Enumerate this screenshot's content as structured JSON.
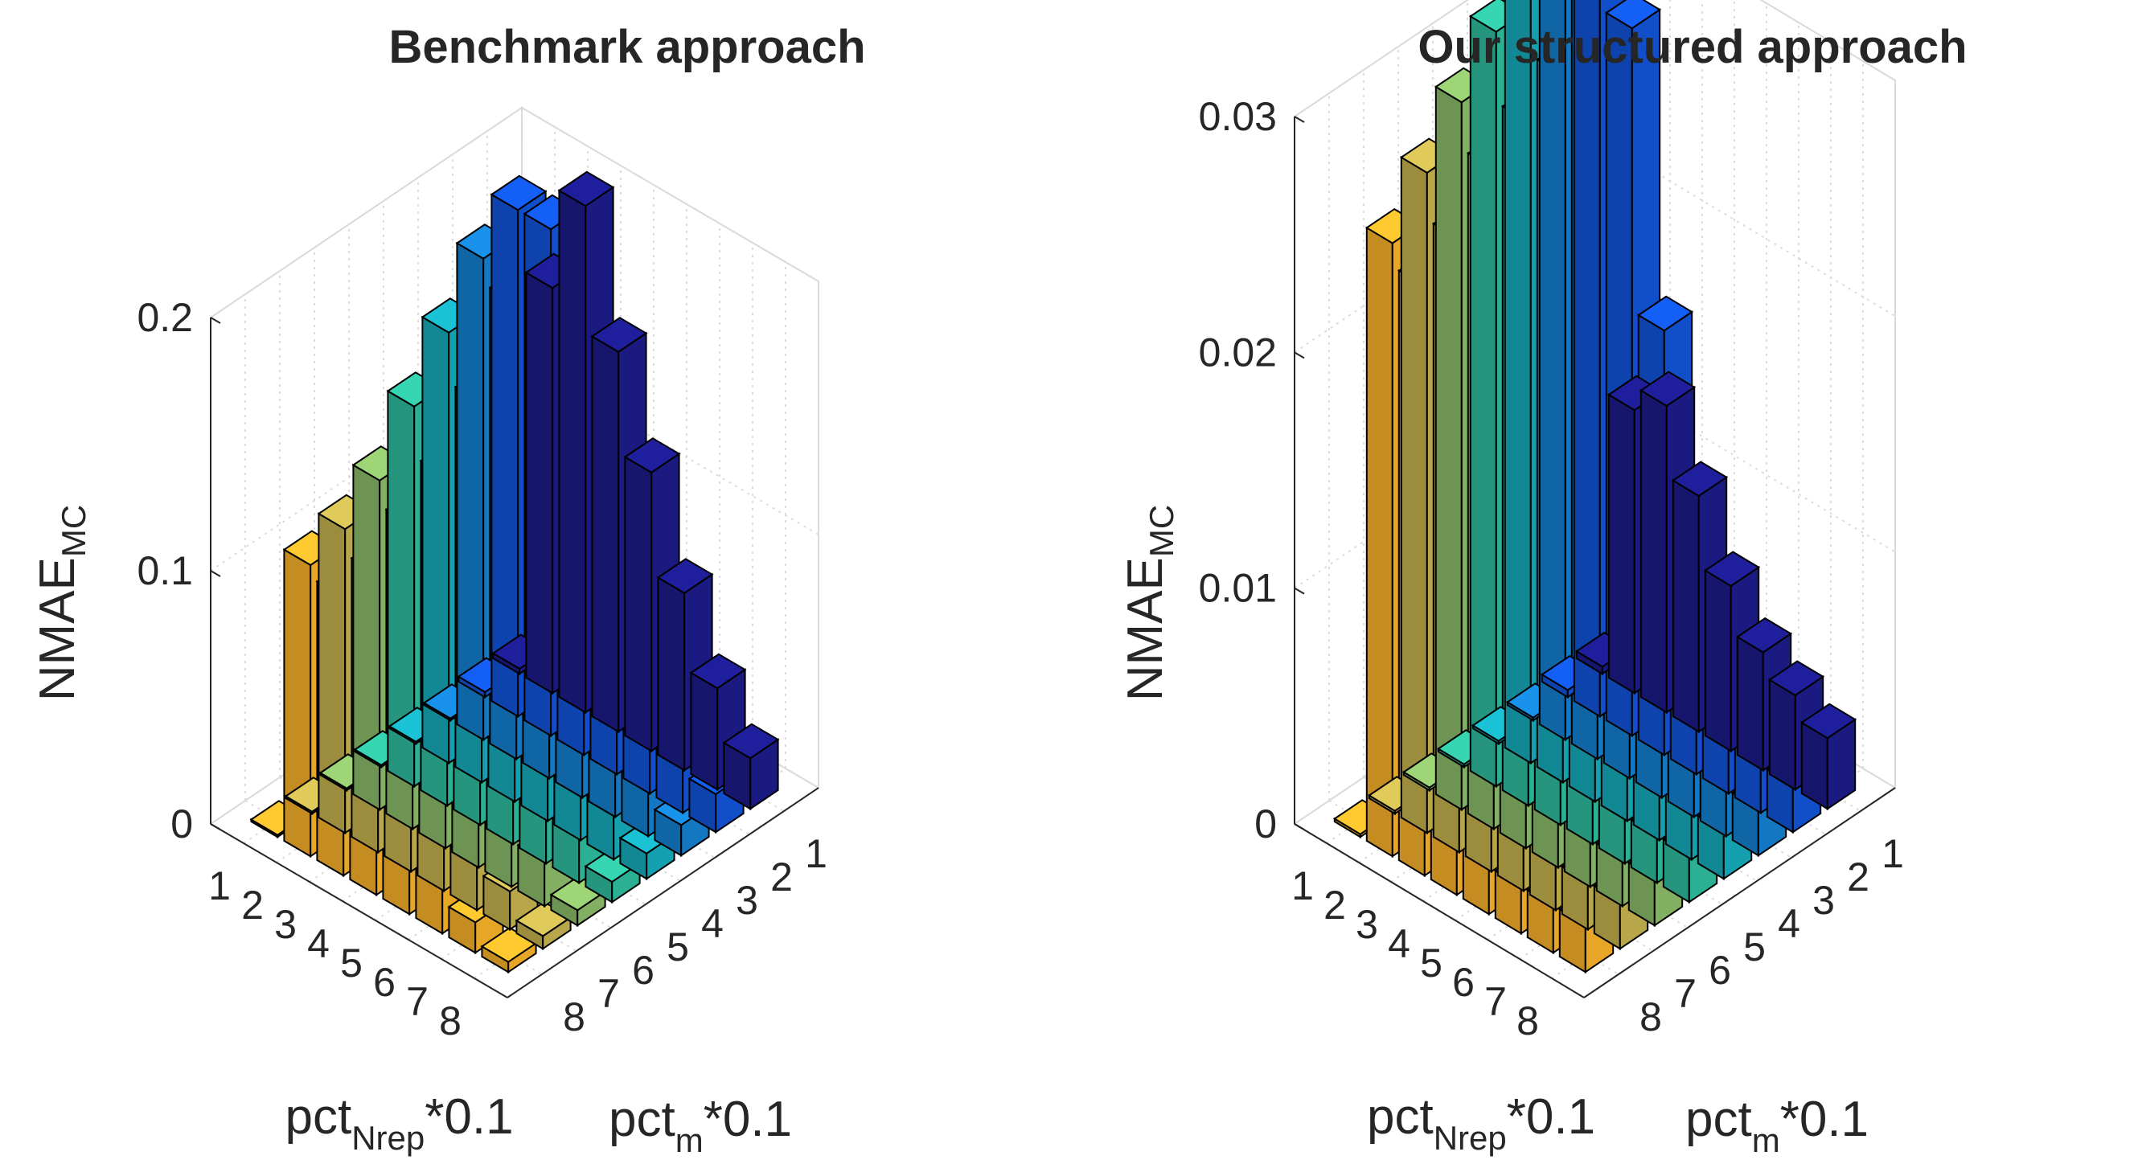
{
  "chart_data": [
    {
      "type": "bar3d",
      "title": "Benchmark approach",
      "zlabel": "NMAE",
      "zlabel_sub": "MC",
      "xlabel_main": "pct",
      "xlabel_sub": "Nrep",
      "xlabel_suffix": "*0.1",
      "ylabel_main": "pct",
      "ylabel_sub": "m",
      "ylabel_suffix": "*0.1",
      "x_ticks": [
        "1",
        "2",
        "3",
        "4",
        "5",
        "6",
        "7",
        "8"
      ],
      "y_ticks": [
        "1",
        "2",
        "3",
        "4",
        "5",
        "6",
        "7",
        "8"
      ],
      "zlim": [
        0,
        0.2
      ],
      "z_ticks": [
        "0",
        "0.1",
        "0.2"
      ],
      "z_tick_values": [
        0,
        0.1,
        0.2
      ],
      "series_colors": [
        "#1c1c8c",
        "#1255dc",
        "#1582d2",
        "#16aebe",
        "#30bfa0",
        "#8dbe6a",
        "#c8b450",
        "#fcb42a",
        "#fbf01e"
      ],
      "series": [
        {
          "name": "pct_Nrep 1",
          "values": [
            0.002,
            0.002,
            0.0,
            0.0,
            0.0,
            0.0,
            0.0,
            0.0
          ]
        },
        {
          "name": "pct_Nrep 2",
          "values": [
            0.16,
            0.2,
            0.19,
            0.17,
            0.15,
            0.13,
            0.12,
            0.115
          ]
        },
        {
          "name": "pct_Nrep 3",
          "values": [
            0.2,
            0.2,
            0.18,
            0.15,
            0.13,
            0.12,
            0.11,
            0.11
          ]
        },
        {
          "name": "pct_Nrep 4",
          "values": [
            0.15,
            0.13,
            0.12,
            0.11,
            0.1,
            0.09,
            0.08,
            0.075
          ]
        },
        {
          "name": "pct_Nrep 5",
          "values": [
            0.11,
            0.09,
            0.08,
            0.07,
            0.06,
            0.05,
            0.045,
            0.04
          ]
        },
        {
          "name": "pct_Nrep 6",
          "values": [
            0.07,
            0.055,
            0.05,
            0.045,
            0.04,
            0.035,
            0.03,
            0.025
          ]
        },
        {
          "name": "pct_Nrep 7",
          "values": [
            0.04,
            0.035,
            0.03,
            0.025,
            0.02,
            0.018,
            0.015,
            0.012
          ]
        },
        {
          "name": "pct_Nrep 8",
          "values": [
            0.02,
            0.015,
            0.012,
            0.01,
            0.008,
            0.006,
            0.005,
            0.004
          ]
        }
      ]
    },
    {
      "type": "bar3d",
      "title": "Our structured approach",
      "zlabel": "NMAE",
      "zlabel_sub": "MC",
      "xlabel_main": "pct",
      "xlabel_sub": "Nrep",
      "xlabel_suffix": "*0.1",
      "ylabel_main": "pct",
      "ylabel_sub": "m",
      "ylabel_suffix": "*0.1",
      "x_ticks": [
        "1",
        "2",
        "3",
        "4",
        "5",
        "6",
        "7",
        "8"
      ],
      "y_ticks": [
        "1",
        "2",
        "3",
        "4",
        "5",
        "6",
        "7",
        "8"
      ],
      "zlim": [
        0,
        0.03
      ],
      "z_ticks": [
        "0",
        "0.01",
        "0.02",
        "0.03"
      ],
      "z_tick_values": [
        0,
        0.01,
        0.02,
        0.03
      ],
      "series_colors": [
        "#1c1c8c",
        "#1255dc",
        "#1582d2",
        "#16aebe",
        "#30bfa0",
        "#8dbe6a",
        "#c8b450",
        "#fcb42a",
        "#fbf01e"
      ],
      "series": [
        {
          "name": "pct_Nrep 1",
          "values": [
            0.0003,
            0.0003,
            0.0,
            0.0,
            0.0,
            0.0,
            0.0,
            0.0
          ]
        },
        {
          "name": "pct_Nrep 2",
          "values": [
            0.012,
            0.035,
            0.036,
            0.034,
            0.032,
            0.03,
            0.028,
            0.026
          ]
        },
        {
          "name": "pct_Nrep 3",
          "values": [
            0.013,
            0.03,
            0.032,
            0.03,
            0.029,
            0.028,
            0.026,
            0.025
          ]
        },
        {
          "name": "pct_Nrep 4",
          "values": [
            0.01,
            0.018,
            0.02,
            0.019,
            0.018,
            0.016,
            0.014,
            0.012
          ]
        },
        {
          "name": "pct_Nrep 5",
          "values": [
            0.007,
            0.009,
            0.009,
            0.008,
            0.007,
            0.006,
            0.005,
            0.004
          ]
        },
        {
          "name": "pct_Nrep 6",
          "values": [
            0.005,
            0.005,
            0.004,
            0.004,
            0.003,
            0.003,
            0.003,
            0.002
          ]
        },
        {
          "name": "pct_Nrep 7",
          "values": [
            0.004,
            0.003,
            0.003,
            0.003,
            0.002,
            0.002,
            0.002,
            0.002
          ]
        },
        {
          "name": "pct_Nrep 8",
          "values": [
            0.003,
            0.002,
            0.002,
            0.002,
            0.002,
            0.002,
            0.002,
            0.002
          ]
        }
      ]
    }
  ]
}
